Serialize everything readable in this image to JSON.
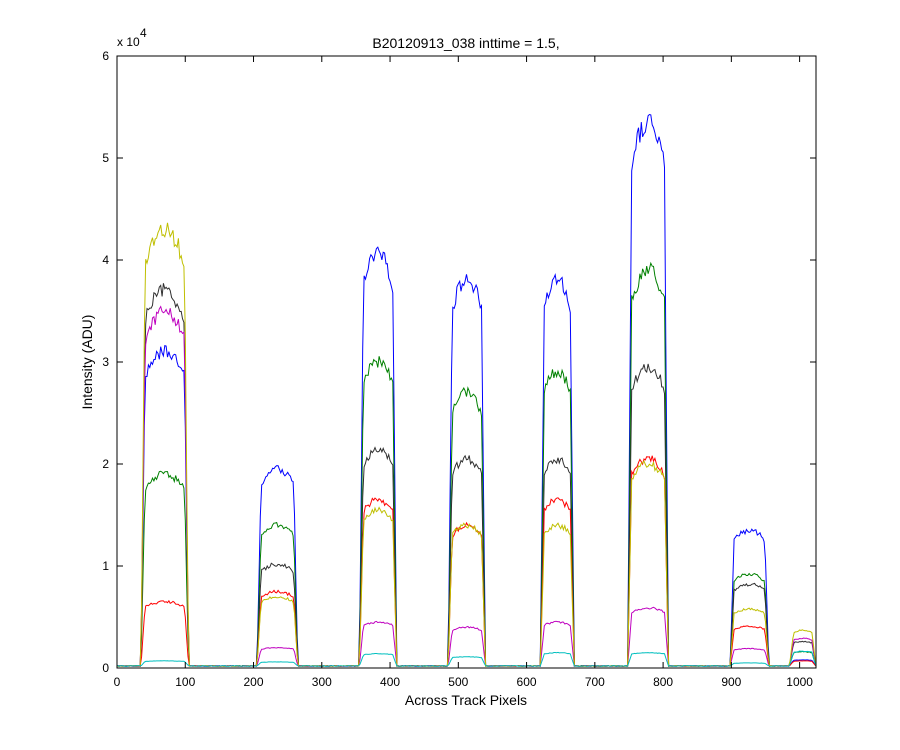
{
  "chart_data": {
    "type": "line",
    "title": "B20120913_038 inttime = 1.5,",
    "xlabel": "Across Track Pixels",
    "ylabel": "Intensity (ADU)",
    "exponent_label": "x 10",
    "exponent_power": "4",
    "xlim": [
      0,
      1024
    ],
    "ylim": [
      0,
      60000
    ],
    "xticks": [
      0,
      100,
      200,
      300,
      400,
      500,
      600,
      700,
      800,
      900,
      1000
    ],
    "yticks": [
      0,
      10000,
      20000,
      30000,
      40000,
      50000,
      60000
    ],
    "ytick_labels": [
      "0",
      "1",
      "2",
      "3",
      "4",
      "5",
      "6"
    ],
    "grid": false,
    "baseline": 200,
    "segments": [
      [
        35,
        105
      ],
      [
        205,
        265
      ],
      [
        355,
        410
      ],
      [
        485,
        540
      ],
      [
        620,
        670
      ],
      [
        748,
        808
      ],
      [
        898,
        955
      ],
      [
        985,
        1024
      ]
    ],
    "series": [
      {
        "color": "#0000ff",
        "values": [
          31000,
          19500,
          40500,
          38000,
          38000,
          53500,
          13500,
          800
        ]
      },
      {
        "color": "#008000",
        "values": [
          19000,
          14000,
          30000,
          27000,
          29000,
          39000,
          9200,
          1600
        ]
      },
      {
        "color": "#303030",
        "values": [
          37000,
          10200,
          21500,
          20500,
          20500,
          29500,
          8200,
          2600
        ]
      },
      {
        "color": "#bf00bf",
        "values": [
          35000,
          2000,
          4500,
          4000,
          4500,
          5900,
          1900,
          2900
        ]
      },
      {
        "color": "#ff0000",
        "values": [
          6500,
          7500,
          16500,
          14000,
          16500,
          20500,
          4100,
          700
        ]
      },
      {
        "color": "#bfbf00",
        "values": [
          43000,
          7000,
          15500,
          14000,
          14000,
          20000,
          5800,
          3700
        ]
      },
      {
        "color": "#00bfbf",
        "values": [
          700,
          600,
          1400,
          1100,
          1500,
          1500,
          500,
          1650
        ]
      }
    ]
  }
}
